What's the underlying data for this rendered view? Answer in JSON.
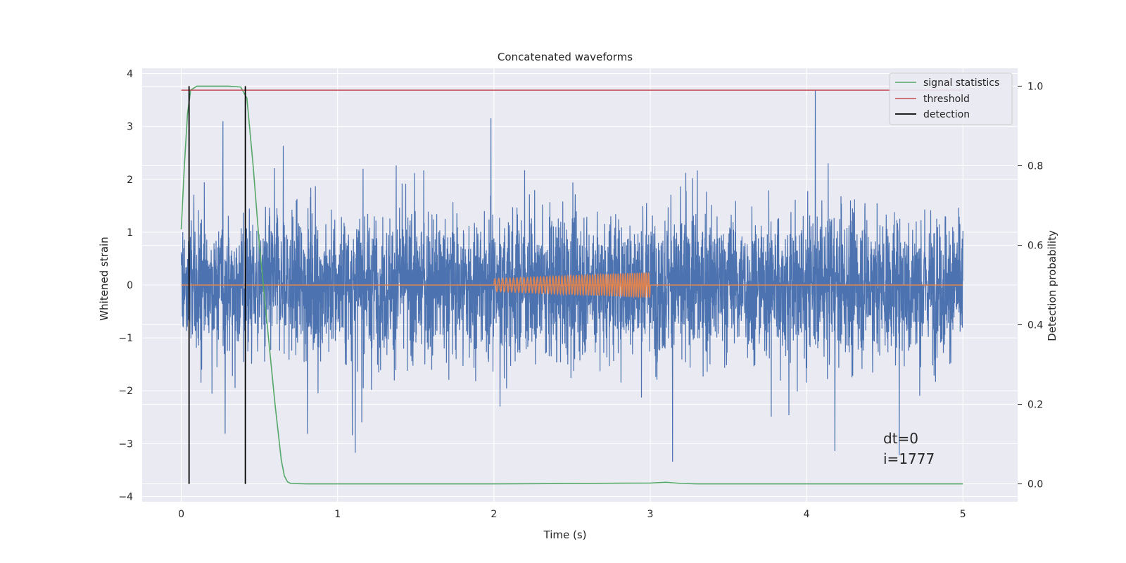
{
  "chart_data": {
    "type": "line",
    "title": "Concatenated waveforms",
    "xlabel": "Time (s)",
    "ylabel": "Whitened strain",
    "y2label": "Detection probability",
    "xlim": [
      -0.25,
      5.35
    ],
    "ylim": [
      -4.1,
      4.1
    ],
    "y2lim": [
      -0.045,
      1.045
    ],
    "xticks": [
      0,
      1,
      2,
      3,
      4,
      5
    ],
    "yticks": [
      -4,
      -3,
      -2,
      -1,
      0,
      1,
      2,
      3,
      4
    ],
    "y2ticks": [
      0.0,
      0.2,
      0.4,
      0.6,
      0.8,
      1.0
    ],
    "ytick_labels": [
      "−4",
      "−3",
      "−2",
      "−1",
      "0",
      "1",
      "2",
      "3",
      "4"
    ],
    "y2tick_labels": [
      "0.0",
      "0.2",
      "0.4",
      "0.6",
      "0.8",
      "1.0"
    ],
    "grid": true,
    "legend_position": "top-right",
    "style": {
      "background": "#eaeaf2",
      "grid_color": "#ffffff",
      "strain_color": "#4c72b0",
      "injection_color": "#dd8452",
      "statistics_color": "#55a868",
      "threshold_color": "#c44e52",
      "detection_color": "#000000"
    },
    "series": [
      {
        "name": "strain",
        "axis": "left",
        "color": "#4c72b0",
        "description_free": true,
        "x_range": [
          0,
          5
        ],
        "y_range": [
          -3.75,
          3.7
        ]
      },
      {
        "name": "injection",
        "axis": "left",
        "color": "#dd8452",
        "x_range": [
          2,
          3
        ],
        "amplitude_start": 0.12,
        "amplitude_end": 0.24
      },
      {
        "name": "signal statistics",
        "axis": "right",
        "color": "#55a868",
        "x": [
          0,
          0.02,
          0.04,
          0.06,
          0.1,
          0.2,
          0.3,
          0.38,
          0.42,
          0.46,
          0.5,
          0.55,
          0.6,
          0.64,
          0.66,
          0.68,
          0.7,
          0.8,
          1.0,
          2.0,
          3.0,
          3.1,
          3.2,
          3.3,
          4.0,
          5.0
        ],
        "y": [
          0.64,
          0.8,
          0.93,
          0.99,
          1.0,
          1.0,
          1.0,
          0.998,
          0.97,
          0.8,
          0.6,
          0.4,
          0.2,
          0.06,
          0.02,
          0.005,
          0.001,
          0.0,
          0.0,
          0.0,
          0.002,
          0.004,
          0.001,
          0.0,
          0.0,
          0.0
        ]
      },
      {
        "name": "threshold",
        "axis": "right",
        "color": "#c44e52",
        "x": [
          0,
          5
        ],
        "y": [
          0.99,
          0.99
        ]
      },
      {
        "name": "detection",
        "axis": "right",
        "color": "#000000",
        "x": [
          0.05,
          0.41
        ],
        "y_range": [
          0.0,
          1.0
        ]
      }
    ],
    "legend": [
      "signal statistics",
      "threshold",
      "detection"
    ],
    "annotations": [
      "dt=0",
      "i=1777"
    ]
  }
}
